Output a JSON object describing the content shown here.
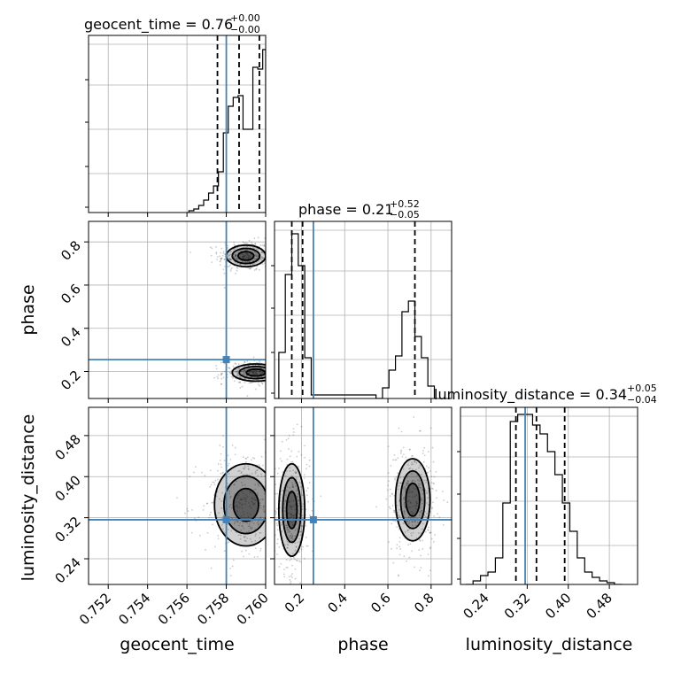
{
  "chart_data": {
    "type": "corner",
    "parameters": [
      "geocent_time",
      "phase",
      "luminosity_distance"
    ],
    "axis_labels": {
      "x": [
        "geocent_time",
        "phase",
        "luminosity_distance"
      ],
      "y_phase": "phase",
      "y_luminosity_distance": "luminosity_distance"
    },
    "titles": [
      {
        "param": "geocent_time",
        "text": "geocent_time = 0.76",
        "plus": "+0.00",
        "minus": "−0.00"
      },
      {
        "param": "phase",
        "text": "phase = 0.21",
        "plus": "+0.52",
        "minus": "−0.05"
      },
      {
        "param": "luminosity_distance",
        "text": "luminosity_distance = 0.34",
        "plus": "+0.05",
        "minus": "−0.04"
      }
    ],
    "ranges": {
      "geocent_time": [
        0.751,
        0.76
      ],
      "phase": [
        0.075,
        0.895
      ],
      "luminosity_distance": [
        0.19,
        0.535
      ]
    },
    "ticks": {
      "geocent_time": [
        "0.752",
        "0.754",
        "0.756",
        "0.758",
        "0.760"
      ],
      "phase": [
        "0.2",
        "0.4",
        "0.6",
        "0.8"
      ],
      "luminosity_distance": [
        "0.24",
        "0.32",
        "0.40",
        "0.48"
      ]
    },
    "truths": {
      "geocent_time": 0.758,
      "phase": 0.255,
      "luminosity_distance": 0.316
    },
    "quantiles": {
      "geocent_time": [
        0.75755,
        0.75865,
        0.75968
      ],
      "phase": [
        0.155,
        0.205,
        0.725
      ],
      "luminosity_distance": [
        0.298,
        0.338,
        0.393
      ]
    },
    "histograms": {
      "geocent_time": {
        "edges": [
          0.7561,
          0.75635,
          0.7566,
          0.75685,
          0.7571,
          0.75735,
          0.7576,
          0.75785,
          0.7581,
          0.75835,
          0.7586,
          0.75885,
          0.7591,
          0.75935,
          0.7596,
          0.75985,
          0.76
        ],
        "counts": [
          0.01,
          0.02,
          0.04,
          0.07,
          0.11,
          0.15,
          0.23,
          0.45,
          0.6,
          0.65,
          0.66,
          0.47,
          0.47,
          0.82,
          0.81,
          0.92
        ]
      },
      "phase": {
        "edges": [
          0.095,
          0.125,
          0.155,
          0.185,
          0.215,
          0.245,
          0.545,
          0.575,
          0.605,
          0.635,
          0.665,
          0.695,
          0.725,
          0.755,
          0.785,
          0.815
        ],
        "counts": [
          0.26,
          0.7,
          0.93,
          0.75,
          0.23,
          0.02,
          0.0,
          0.06,
          0.16,
          0.24,
          0.49,
          0.55,
          0.35,
          0.23,
          0.07
        ]
      },
      "luminosity_distance": {
        "edges": [
          0.2,
          0.2145,
          0.229,
          0.2435,
          0.258,
          0.2725,
          0.287,
          0.3015,
          0.316,
          0.3305,
          0.345,
          0.3595,
          0.374,
          0.3885,
          0.403,
          0.4175,
          0.432,
          0.4465,
          0.461,
          0.4755,
          0.49,
          0.5045
        ],
        "counts": [
          0.0,
          0.02,
          0.05,
          0.07,
          0.15,
          0.46,
          0.92,
          0.96,
          0.96,
          0.9,
          0.85,
          0.75,
          0.62,
          0.46,
          0.3,
          0.15,
          0.07,
          0.04,
          0.02,
          0.01,
          0.0
        ]
      }
    },
    "contours_2d": [
      {
        "x": "geocent_time",
        "y": "phase",
        "modes": [
          {
            "cx": 0.759,
            "cy": 0.735,
            "sx": 0.0005,
            "sy": 0.025
          },
          {
            "cx": 0.7595,
            "cy": 0.195,
            "sx": 0.0006,
            "sy": 0.02
          }
        ]
      },
      {
        "x": "geocent_time",
        "y": "luminosity_distance",
        "modes": [
          {
            "cx": 0.759,
            "cy": 0.345,
            "sx": 0.0008,
            "sy": 0.04
          }
        ]
      },
      {
        "x": "phase",
        "y": "luminosity_distance",
        "modes": [
          {
            "cx": 0.155,
            "cy": 0.335,
            "sx": 0.03,
            "sy": 0.045
          },
          {
            "cx": 0.715,
            "cy": 0.355,
            "sx": 0.04,
            "sy": 0.04
          }
        ]
      }
    ],
    "grid": true,
    "colors": {
      "truth": "#4682b4",
      "hist": "#000000",
      "grid": "#b0b0b0",
      "quantile": "#000000"
    }
  }
}
